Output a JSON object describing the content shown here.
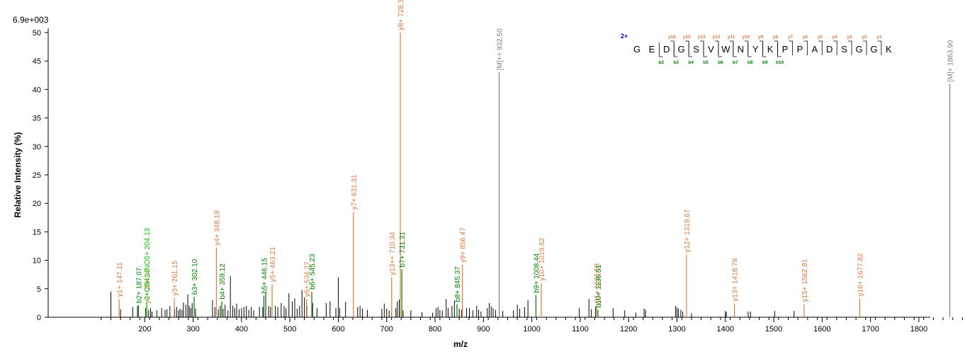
{
  "chart_data": {
    "type": "bar",
    "scale_label": "6.9e+003",
    "xlabel": "m/z",
    "ylabel": "Relative   Intensity (%)",
    "xlim": [
      110,
      1900
    ],
    "ylim": [
      0,
      50
    ],
    "x_ticks": [
      200,
      300,
      400,
      500,
      600,
      700,
      800,
      900,
      1000,
      1100,
      1200,
      1300,
      1400,
      1500,
      1600,
      1700,
      1800
    ],
    "y_ticks": [
      0,
      5,
      10,
      15,
      20,
      25,
      30,
      35,
      40,
      45,
      50
    ],
    "colors": {
      "y": "#e07a3e",
      "b": "#008000",
      "other": "#00cc00",
      "precursor": "#808080",
      "unassigned": "#000000",
      "charge": "#0000cc"
    },
    "peaks": [
      [
        130,
        4.5
      ],
      [
        150,
        1.4
      ],
      [
        175,
        1.8
      ],
      [
        185,
        2.0
      ],
      [
        202,
        1.6
      ],
      [
        208,
        1.3
      ],
      [
        212,
        1.6
      ],
      [
        215,
        1.0
      ],
      [
        225,
        1.2
      ],
      [
        235,
        1.6
      ],
      [
        242,
        1.3
      ],
      [
        246,
        1.4
      ],
      [
        252,
        2.0
      ],
      [
        262,
        1.4
      ],
      [
        266,
        1.8
      ],
      [
        270,
        1.2
      ],
      [
        273,
        1.5
      ],
      [
        277,
        1.3
      ],
      [
        280,
        2.6
      ],
      [
        285,
        2.2
      ],
      [
        289,
        4.0
      ],
      [
        292,
        2.0
      ],
      [
        295,
        1.6
      ],
      [
        298,
        2.5
      ],
      [
        305,
        1.5
      ],
      [
        340,
        3.0
      ],
      [
        345,
        1.8
      ],
      [
        352,
        1.4
      ],
      [
        356,
        2.0
      ],
      [
        362,
        1.5
      ],
      [
        366,
        2.2
      ],
      [
        372,
        1.2
      ],
      [
        377,
        7.2
      ],
      [
        382,
        2.0
      ],
      [
        386,
        1.6
      ],
      [
        390,
        2.4
      ],
      [
        395,
        1.4
      ],
      [
        400,
        1.6
      ],
      [
        405,
        1.8
      ],
      [
        410,
        2.0
      ],
      [
        415,
        1.3
      ],
      [
        420,
        1.8
      ],
      [
        425,
        1.2
      ],
      [
        437,
        1.8
      ],
      [
        444,
        1.8
      ],
      [
        450,
        4.2
      ],
      [
        456,
        2.0
      ],
      [
        460,
        1.8
      ],
      [
        470,
        2.0
      ],
      [
        475,
        1.8
      ],
      [
        482,
        2.5
      ],
      [
        488,
        2.0
      ],
      [
        492,
        1.6
      ],
      [
        498,
        4.2
      ],
      [
        505,
        2.8
      ],
      [
        510,
        3.3
      ],
      [
        515,
        1.5
      ],
      [
        520,
        2.0
      ],
      [
        525,
        4.8
      ],
      [
        530,
        3.5
      ],
      [
        535,
        2.0
      ],
      [
        547,
        2.5
      ],
      [
        556,
        1.6
      ],
      [
        575,
        2.5
      ],
      [
        583,
        2.8
      ],
      [
        595,
        1.6
      ],
      [
        600,
        7.0
      ],
      [
        603,
        1.6
      ],
      [
        615,
        2.7
      ],
      [
        640,
        1.8
      ],
      [
        645,
        2.0
      ],
      [
        650,
        1.5
      ],
      [
        660,
        1.3
      ],
      [
        690,
        1.5
      ],
      [
        695,
        2.4
      ],
      [
        700,
        1.5
      ],
      [
        705,
        1.2
      ],
      [
        710,
        0.8
      ],
      [
        719,
        1.6
      ],
      [
        722,
        2.8
      ],
      [
        726,
        3.1
      ],
      [
        734,
        1.2
      ],
      [
        750,
        1.2
      ],
      [
        773,
        0.9
      ],
      [
        795,
        0.8
      ],
      [
        802,
        1.6
      ],
      [
        806,
        1.8
      ],
      [
        810,
        1.3
      ],
      [
        815,
        1.2
      ],
      [
        823,
        3.2
      ],
      [
        827,
        1.6
      ],
      [
        835,
        2.0
      ],
      [
        840,
        2.9
      ],
      [
        850,
        1.5
      ],
      [
        855,
        1.3
      ],
      [
        865,
        1.6
      ],
      [
        871,
        1.6
      ],
      [
        878,
        1.2
      ],
      [
        886,
        2.0
      ],
      [
        890,
        1.3
      ],
      [
        895,
        1.0
      ],
      [
        908,
        1.6
      ],
      [
        912,
        2.5
      ],
      [
        916,
        1.9
      ],
      [
        920,
        1.6
      ],
      [
        925,
        1.3
      ],
      [
        940,
        1.1
      ],
      [
        962,
        1.2
      ],
      [
        970,
        2.2
      ],
      [
        975,
        1.5
      ],
      [
        985,
        1.8
      ],
      [
        992,
        3.0
      ],
      [
        1098,
        1.6
      ],
      [
        1118,
        3.2
      ],
      [
        1123,
        1.4
      ],
      [
        1132,
        1.9
      ],
      [
        1168,
        1.6
      ],
      [
        1192,
        1.2
      ],
      [
        1215,
        0.8
      ],
      [
        1232,
        1.5
      ],
      [
        1235,
        1.3
      ],
      [
        1297,
        2.0
      ],
      [
        1300,
        1.7
      ],
      [
        1303,
        1.5
      ],
      [
        1308,
        1.3
      ],
      [
        1312,
        1.0
      ],
      [
        1330,
        0.7
      ],
      [
        1400,
        1.1
      ],
      [
        1402,
        0.9
      ],
      [
        1447,
        1.0
      ],
      [
        1452,
        1.0
      ],
      [
        1502,
        1.1
      ],
      [
        1542,
        1.1
      ]
    ],
    "annotated": [
      {
        "x": 147.11,
        "y": 3.2,
        "label": "y1+ 147.11",
        "type": "y"
      },
      {
        "x": 187.07,
        "y": 2.1,
        "label": "b2+ 187.07",
        "type": "b"
      },
      {
        "x": 204.13,
        "y": 2.0,
        "label": "y2+ 204.13",
        "type": "y"
      },
      {
        "x": 204.13,
        "y": 2.6,
        "label": "0+C8H14NO5+ 204.13",
        "type": "other"
      },
      {
        "x": 261.15,
        "y": 3.4,
        "label": "y3+ 261.15",
        "type": "y"
      },
      {
        "x": 302.1,
        "y": 3.6,
        "label": "b3+ 302.10",
        "type": "b"
      },
      {
        "x": 348.19,
        "y": 12.2,
        "label": "y4+ 348.19",
        "type": "y"
      },
      {
        "x": 359.12,
        "y": 2.8,
        "label": "b4+ 359.12",
        "type": "b"
      },
      {
        "x": 446.15,
        "y": 3.8,
        "label": "b5+ 446.15",
        "type": "b"
      },
      {
        "x": 463.21,
        "y": 5.8,
        "label": "y5+ 463.21",
        "type": "y"
      },
      {
        "x": 534.27,
        "y": 3.2,
        "label": "y6+ 534.27",
        "type": "y"
      },
      {
        "x": 545.23,
        "y": 4.5,
        "label": "b6+ 545.23",
        "type": "b"
      },
      {
        "x": 631.31,
        "y": 18.5,
        "label": "y7+ 631.31",
        "type": "y"
      },
      {
        "x": 710.34,
        "y": 7.0,
        "label": "y13++ 710.34",
        "type": "y"
      },
      {
        "x": 728.3,
        "y": 50.0,
        "label": "y8+ 728.3",
        "type": "y"
      },
      {
        "x": 731.31,
        "y": 8.4,
        "label": "b7+ 731.31",
        "type": "b"
      },
      {
        "x": 845.37,
        "y": 2.3,
        "label": "b8+ 845.37",
        "type": "b"
      },
      {
        "x": 856.47,
        "y": 9.2,
        "label": "y9+ 856.47",
        "type": "y"
      },
      {
        "x": 932.5,
        "y": 43.0,
        "label": "[M]++ 932.50",
        "type": "precursor"
      },
      {
        "x": 1008.44,
        "y": 3.9,
        "label": "b9+ 1008.44",
        "type": "b"
      },
      {
        "x": 1019.52,
        "y": 6.0,
        "label": "y10+ 1019.52",
        "type": "y"
      },
      {
        "x": 1133.58,
        "y": 1.7,
        "label": "y11+ 1133.58",
        "type": "y"
      },
      {
        "x": 1136.51,
        "y": 1.3,
        "label": "b10+ 1136.51",
        "type": "b"
      },
      {
        "x": 1319.67,
        "y": 11.0,
        "label": "y12+ 1319.67",
        "type": "y"
      },
      {
        "x": 1418.78,
        "y": 2.4,
        "label": "y13+ 1418.78",
        "type": "y"
      },
      {
        "x": 1562.81,
        "y": 2.3,
        "label": "y15+ 1562.81",
        "type": "y"
      },
      {
        "x": 1677.82,
        "y": 3.3,
        "label": "y16+ 1677.82",
        "type": "y"
      },
      {
        "x": 1863.9,
        "y": 41.0,
        "label": "[M]+ 1863.90",
        "type": "precursor"
      }
    ],
    "sequence": {
      "charge": "2+",
      "residues": [
        "G",
        "E",
        "D",
        "G",
        "S",
        "V",
        "W",
        "N",
        "Y",
        "K",
        "P",
        "P",
        "A",
        "D",
        "S",
        "G",
        "G",
        "K"
      ],
      "y_ions": [
        "y16",
        "y15",
        "y13",
        "y12",
        "y11",
        "y10",
        "y9",
        "y8",
        "y7",
        "y6",
        "y5",
        "y4",
        "y3",
        "y2",
        "y1"
      ],
      "b_ions": [
        "b2",
        "b3",
        "b4",
        "b5",
        "b6",
        "b7",
        "b8",
        "b9",
        "b10"
      ]
    }
  }
}
